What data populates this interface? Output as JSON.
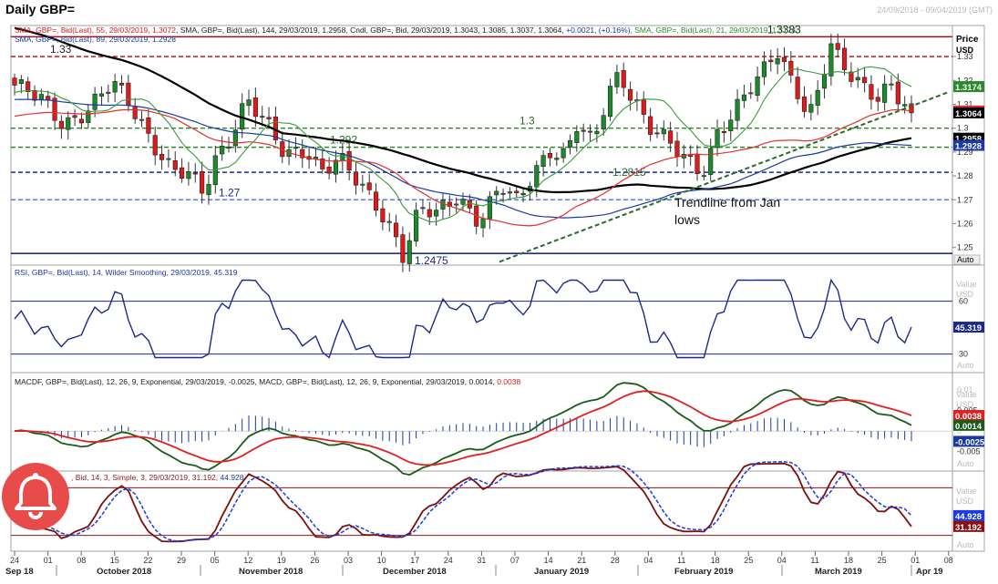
{
  "header": {
    "title": "Daily GBP=",
    "date_range": "24/09/2018 - 09/04/2019 (GMT)"
  },
  "alert": {
    "icon": "bell-icon",
    "color": "#e74c4a"
  },
  "price_panel": {
    "legend_line1": [
      {
        "text": "SMA, GBP=, Bid(Last), 55, 29/03/2019, 1.3072",
        "color": "#d22020"
      },
      {
        "text": ", SMA, GBP=, Bid(Last), 144, 29/03/2019, 1.2958, Cndl, GBP=, Bid, 29/03/2019, 1.3043, 1.3085, 1.3037, 1.3064, ",
        "color": "#202020"
      },
      {
        "text": "+0.0021, (+0.16%)",
        "color": "#1a3aa0"
      },
      {
        "text": ", SMA, GBP=, Bid(Last), 21, 29/03/2019, 1.3174, ",
        "color": "#2a8a2a"
      }
    ],
    "legend_line2": {
      "text": "SMA, GBP=, Bid(Last), 89, 29/03/2019, 1.2928",
      "color": "#1a3aa0"
    },
    "axis_title_1": "Price",
    "axis_title_2": "USD",
    "auto_label": "Auto",
    "annotation": "Trendline from Jan lows"
  },
  "rsi_panel": {
    "legend": "RSI, GBP=, Bid(Last), 14, Wilder Smoothing, 29/03/2019, 45.319",
    "legend_color": "#1a3aa0",
    "axis_title_1": "Value",
    "axis_title_2": "USD",
    "auto_label": "Auto"
  },
  "macd_panel": {
    "legend_parts": [
      {
        "text": "MACDF, GBP=, Bid(Last), 12, 26, 9, Exponential, 29/03/2019, -0.0025, MACD, GBP=, Bid(Last), 12, 26, 9, Exponential, 29/03/2019, 0.0014, ",
        "color": "#202020"
      },
      {
        "text": "0.0038",
        "color": "#d22020"
      }
    ],
    "axis_title_1": "Value",
    "axis_title_2": "USD",
    "auto_label": "Auto"
  },
  "stoch_panel": {
    "legend_parts": [
      {
        "text": ", Bid, 14, 3, Simple, 3, 29/03/2019, 31.192, ",
        "color": "#8b1a1a"
      },
      {
        "text": "44.928",
        "color": "#1a3aa0"
      }
    ],
    "axis_title_1": "Value",
    "axis_title_2": "USD",
    "auto_label": "Auto"
  },
  "x_axis": {
    "day_ticks": [
      "24",
      "01",
      "08",
      "15",
      "22",
      "29",
      "05",
      "12",
      "19",
      "26",
      "03",
      "10",
      "17",
      "24",
      "31",
      "07",
      "14",
      "21",
      "28",
      "04",
      "11",
      "18",
      "25",
      "04",
      "11",
      "18",
      "25",
      "01",
      "08"
    ],
    "month_labels": [
      "Sep 18",
      "October 2018",
      "November 2018",
      "December 2018",
      "January 2019",
      "February 2019",
      "March 2019",
      "Apr 19"
    ]
  },
  "chart_data": [
    {
      "type": "candlestick",
      "panel": "price",
      "y_range": [
        1.243,
        1.343
      ],
      "y_ticks": [
        1.25,
        1.26,
        1.27,
        1.28,
        1.29,
        1.3,
        1.31,
        1.32,
        1.33
      ],
      "y_tick_labels": [
        "1.25",
        "1.26",
        "1.27",
        "1.28",
        "1.29",
        "1.3",
        "1.31",
        "1.32",
        "1.33"
      ],
      "bar_count": 135,
      "last_close": 1.3064,
      "ohlc_note": "Daily candles 24/09/2018 - 29/03/2019",
      "series": [
        {
          "name": "SMA 21",
          "color": "#3a9a3a",
          "last": 1.3174
        },
        {
          "name": "SMA 55",
          "color": "#e03030",
          "last": 1.3072
        },
        {
          "name": "SMA 89",
          "color": "#1a3aa0",
          "last": 1.2928
        },
        {
          "name": "SMA 144",
          "color": "#000000",
          "last": 1.2958
        }
      ],
      "horizontal_levels": [
        {
          "value": 1.3383,
          "label": "1.3383",
          "color": "#c00000",
          "style": "solid"
        },
        {
          "value": 1.33,
          "label": "1.33",
          "color": "#c00000",
          "style": "dashed"
        },
        {
          "value": 1.3,
          "label": "1.3",
          "color": "#2a8a2a",
          "style": "dashed"
        },
        {
          "value": 1.292,
          "label": "1.292",
          "color": "#2a8a2a",
          "style": "dashed"
        },
        {
          "value": 1.2815,
          "label": "1.2815",
          "color": "#1a2a9a",
          "style": "dashed"
        },
        {
          "value": 1.27,
          "label": "1.27",
          "color": "#5a7ad0",
          "style": "dashed"
        },
        {
          "value": 1.2475,
          "label": "1.2475",
          "color": "#1a2a9a",
          "style": "solid"
        }
      ],
      "value_tags": [
        {
          "label": "1.3174",
          "value": 1.3174,
          "bg": "#2a8a2a",
          "fg": "#ffffff"
        },
        {
          "label": "1.3072",
          "value": 1.3072,
          "bg": "#e03030",
          "fg": "#ffffff"
        },
        {
          "label": "1.3064",
          "value": 1.3064,
          "bg": "#000000",
          "fg": "#ffffff"
        },
        {
          "label": "1.2958",
          "value": 1.2958,
          "bg": "#000000",
          "fg": "#ffffff"
        },
        {
          "label": "1.2928",
          "value": 1.2928,
          "bg": "#1a3aa0",
          "fg": "#ffffff"
        }
      ],
      "trendline": {
        "from": [
          "2019-01-03",
          1.244
        ],
        "to": [
          "2019-04-05",
          1.315
        ]
      }
    },
    {
      "type": "line",
      "panel": "rsi",
      "y_range": [
        20,
        80
      ],
      "levels": [
        60,
        30
      ],
      "last": 45.319,
      "series": [
        {
          "name": "RSI 14",
          "color": "#1a2a8a"
        }
      ]
    },
    {
      "type": "line",
      "panel": "macd",
      "y_range": [
        -0.0095,
        0.014
      ],
      "y_ticks": [
        0.01,
        0.005,
        0,
        -0.005
      ],
      "y_tick_labels": [
        "0.01",
        "0.005",
        "0",
        "-0.005"
      ],
      "series": [
        {
          "name": "MACD",
          "color": "#1a5a1a",
          "last": 0.0014
        },
        {
          "name": "Signal",
          "color": "#e02020",
          "last": 0.0038
        },
        {
          "name": "Histogram",
          "color": "#1a3aa0",
          "last": -0.0025
        }
      ],
      "value_tags": [
        {
          "label": "0.0038",
          "value": 0.0038,
          "bg": "#e02020",
          "fg": "#ffffff"
        },
        {
          "label": "0.0014",
          "value": 0.0014,
          "bg": "#1a5a1a",
          "fg": "#ffffff"
        },
        {
          "label": "-0.0025",
          "value": -0.0025,
          "bg": "#1a3aa0",
          "fg": "#ffffff"
        }
      ]
    },
    {
      "type": "line",
      "panel": "stochastic",
      "y_range": [
        0,
        100
      ],
      "levels": [
        80,
        20
      ],
      "series": [
        {
          "name": "%K",
          "color": "#7a1010",
          "last": 31.192
        },
        {
          "name": "%D",
          "color": "#1a3ae0",
          "last": 44.928
        }
      ],
      "value_tags": [
        {
          "label": "44.928",
          "value": 44.928,
          "bg": "#1a3ae0",
          "fg": "#ffffff"
        },
        {
          "label": "31.192",
          "value": 31.192,
          "bg": "#8b1010",
          "fg": "#ffffff"
        }
      ]
    }
  ]
}
